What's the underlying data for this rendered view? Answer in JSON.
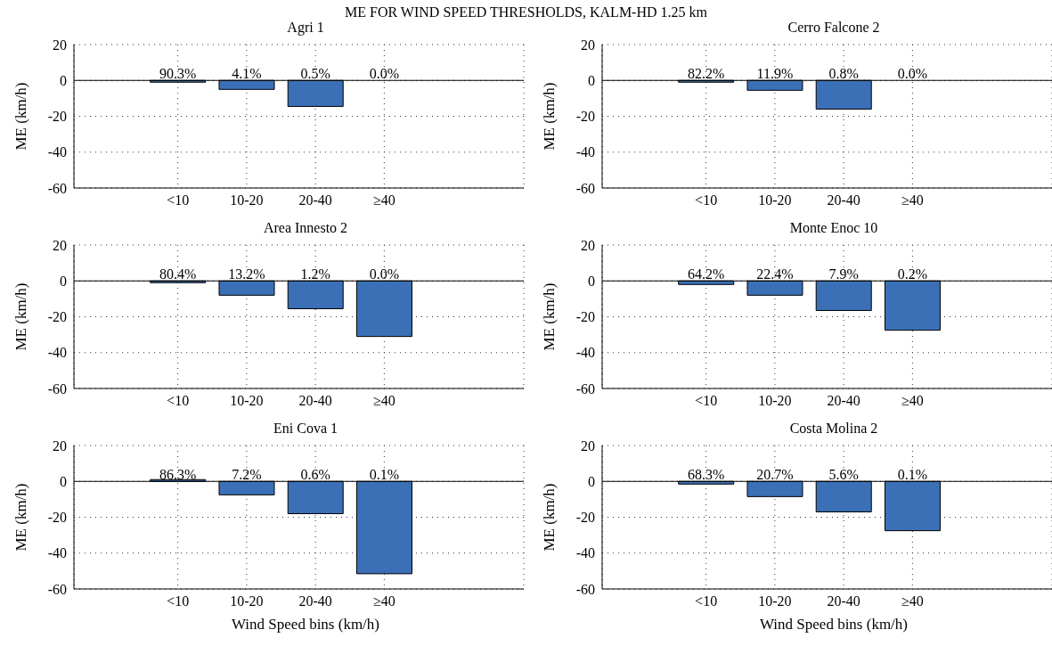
{
  "chart_data": [
    {
      "type": "bar",
      "title": "ME FOR WIND SPEED THRESHOLDS, KALM-HD 1.25 km",
      "subtitle": "Agri 1",
      "ylabel": "ME (km/h)",
      "categories": [
        "<10",
        "10-20",
        "20-40",
        "≥40"
      ],
      "values": [
        -1,
        -5,
        -14.5,
        null
      ],
      "annotations": [
        {
          "text": "90.3%",
          "x": "<10",
          "y": 0
        },
        {
          "text": "4.1%",
          "x": "10-20",
          "y": 0
        },
        {
          "text": "0.5%",
          "x": "20-40",
          "y": 0
        },
        {
          "text": "0.0%",
          "x": "≥40",
          "y": 0
        }
      ],
      "color": "#3b70b7",
      "ylim": [
        -60,
        20
      ],
      "yticks": [
        -60,
        -40,
        -20,
        0,
        20
      ],
      "grid": true,
      "ref_lines": [
        {
          "axis": "y",
          "value": 0
        }
      ]
    },
    {
      "type": "bar",
      "title": "Cerro Falcone 2",
      "ylabel": "ME (km/h)",
      "categories": [
        "<10",
        "10-20",
        "20-40",
        "≥40"
      ],
      "values": [
        -1,
        -5.5,
        -16,
        null
      ],
      "annotations": [
        {
          "text": "82.2%",
          "x": "<10",
          "y": 0
        },
        {
          "text": "11.9%",
          "x": "10-20",
          "y": 0
        },
        {
          "text": "0.8%",
          "x": "20-40",
          "y": 0
        },
        {
          "text": "0.0%",
          "x": "≥40",
          "y": 0
        }
      ],
      "color": "#3b70b7",
      "ylim": [
        -60,
        20
      ],
      "yticks": [
        -60,
        -40,
        -20,
        0,
        20
      ],
      "grid": true,
      "ref_lines": [
        {
          "axis": "y",
          "value": 0
        }
      ]
    },
    {
      "type": "bar",
      "title": "Area Innesto 2",
      "ylabel": "ME (km/h)",
      "categories": [
        "<10",
        "10-20",
        "20-40",
        "≥40"
      ],
      "values": [
        -1,
        -8,
        -15.5,
        -31
      ],
      "annotations": [
        {
          "text": "80.4%",
          "x": "<10",
          "y": 0
        },
        {
          "text": "13.2%",
          "x": "10-20",
          "y": 0
        },
        {
          "text": "1.2%",
          "x": "20-40",
          "y": 0
        },
        {
          "text": "0.0%",
          "x": "≥40",
          "y": 0
        }
      ],
      "color": "#3b70b7",
      "ylim": [
        -60,
        20
      ],
      "yticks": [
        -60,
        -40,
        -20,
        0,
        20
      ],
      "grid": true,
      "ref_lines": [
        {
          "axis": "y",
          "value": 0
        }
      ]
    },
    {
      "type": "bar",
      "title": "Monte Enoc 10",
      "ylabel": "ME (km/h)",
      "categories": [
        "<10",
        "10-20",
        "20-40",
        "≥40"
      ],
      "values": [
        -2,
        -8,
        -16.5,
        -27.5
      ],
      "annotations": [
        {
          "text": "64.2%",
          "x": "<10",
          "y": 0
        },
        {
          "text": "22.4%",
          "x": "10-20",
          "y": 0
        },
        {
          "text": "7.9%",
          "x": "20-40",
          "y": 0
        },
        {
          "text": "0.2%",
          "x": "≥40",
          "y": 0
        }
      ],
      "color": "#3b70b7",
      "ylim": [
        -60,
        20
      ],
      "yticks": [
        -60,
        -40,
        -20,
        0,
        20
      ],
      "grid": true,
      "ref_lines": [
        {
          "axis": "y",
          "value": 0
        }
      ]
    },
    {
      "type": "bar",
      "title": "Eni Cova 1",
      "xlabel": "Wind Speed bins (km/h)",
      "ylabel": "ME (km/h)",
      "categories": [
        "<10",
        "10-20",
        "20-40",
        "≥40"
      ],
      "values": [
        1,
        -7.5,
        -18,
        -51.5
      ],
      "annotations": [
        {
          "text": "86.3%",
          "x": "<10",
          "y": 0
        },
        {
          "text": "7.2%",
          "x": "10-20",
          "y": 0
        },
        {
          "text": "0.6%",
          "x": "20-40",
          "y": 0
        },
        {
          "text": "0.1%",
          "x": "≥40",
          "y": 0
        }
      ],
      "color": "#3b70b7",
      "ylim": [
        -60,
        20
      ],
      "yticks": [
        -60,
        -40,
        -20,
        0,
        20
      ],
      "grid": true,
      "ref_lines": [
        {
          "axis": "y",
          "value": 0
        }
      ]
    },
    {
      "type": "bar",
      "title": "Costa Molina 2",
      "xlabel": "Wind Speed bins (km/h)",
      "ylabel": "ME (km/h)",
      "categories": [
        "<10",
        "10-20",
        "20-40",
        "≥40"
      ],
      "values": [
        -1.5,
        -8.5,
        -17,
        -27.5
      ],
      "annotations": [
        {
          "text": "68.3%",
          "x": "<10",
          "y": 0
        },
        {
          "text": "20.7%",
          "x": "10-20",
          "y": 0
        },
        {
          "text": "5.6%",
          "x": "20-40",
          "y": 0
        },
        {
          "text": "0.1%",
          "x": "≥40",
          "y": 0
        }
      ],
      "color": "#3b70b7",
      "ylim": [
        -60,
        20
      ],
      "yticks": [
        -60,
        -40,
        -20,
        0,
        20
      ],
      "grid": true,
      "ref_lines": [
        {
          "axis": "y",
          "value": 0
        }
      ]
    }
  ]
}
